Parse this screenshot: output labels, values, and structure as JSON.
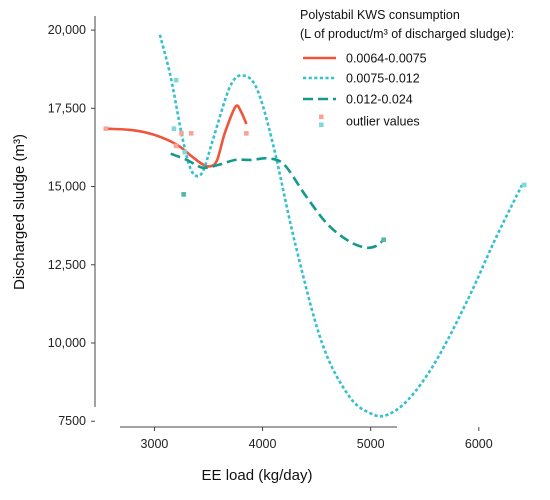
{
  "chart_data": {
    "type": "line",
    "xlabel": "EE load (kg/day)",
    "ylabel": "Discharged sludge (m³)",
    "xlim": [
      2450,
      6520
    ],
    "ylim": [
      6900,
      20450
    ],
    "x_ticks": [
      3000,
      4000,
      5000,
      6000
    ],
    "x_tick_labels": [
      "3000",
      "4000",
      "5000",
      "6000"
    ],
    "y_ticks": [
      7500,
      10000,
      12500,
      15000,
      17500,
      20000
    ],
    "y_tick_labels": [
      "7500",
      "10,000",
      "12,500",
      "15,000",
      "17,500",
      "20,000"
    ],
    "legend": {
      "title_line1": "Polystabil KWS consumption",
      "title_line2": "(L of product/m³ of discharged sludge):",
      "position": "top-right"
    },
    "series": [
      {
        "name": "0.0064-0.0075",
        "color": "#f0553b",
        "style": "solid",
        "x": [
          2550,
          2800,
          3000,
          3200,
          3350,
          3450,
          3520,
          3580,
          3650,
          3750,
          3800,
          3850
        ],
        "y": [
          16850,
          16800,
          16650,
          16350,
          15950,
          15700,
          15650,
          15850,
          16700,
          17550,
          17400,
          17000
        ]
      },
      {
        "name": "0.0075-0.012",
        "color": "#33c0d0",
        "style": "dotted",
        "x": [
          3050,
          3150,
          3250,
          3320,
          3380,
          3450,
          3550,
          3700,
          3820,
          3950,
          4100,
          4300,
          4550,
          4800,
          5000,
          5150,
          5350,
          5600,
          5900,
          6150,
          6400
        ],
        "y": [
          19850,
          18500,
          16700,
          15700,
          15350,
          15500,
          16600,
          18200,
          18550,
          18100,
          16300,
          13200,
          10000,
          8300,
          7750,
          7700,
          8200,
          9400,
          11400,
          13300,
          15050
        ]
      },
      {
        "name": "0.012-0.024",
        "color": "#139a8c",
        "style": "dashed",
        "x": [
          3150,
          3300,
          3450,
          3600,
          3750,
          3900,
          4050,
          4200,
          4400,
          4600,
          4800,
          4950,
          5050,
          5120
        ],
        "y": [
          16050,
          15850,
          15600,
          15700,
          15850,
          15850,
          15900,
          15700,
          14700,
          13800,
          13250,
          13050,
          13100,
          13300
        ]
      }
    ],
    "outliers": {
      "name": "outlier values",
      "points": [
        {
          "x": 2550,
          "y": 16850,
          "color": "#f6a595"
        },
        {
          "x": 3200,
          "y": 16300,
          "color": "#f6a595"
        },
        {
          "x": 3250,
          "y": 16700,
          "color": "#f6a595"
        },
        {
          "x": 3340,
          "y": 16700,
          "color": "#f6a595"
        },
        {
          "x": 3850,
          "y": 16700,
          "color": "#f6a595"
        },
        {
          "x": 3180,
          "y": 16850,
          "color": "#7fd9d9"
        },
        {
          "x": 3200,
          "y": 18400,
          "color": "#7fd9d9"
        },
        {
          "x": 3280,
          "y": 16100,
          "color": "#7fd9d9"
        },
        {
          "x": 3270,
          "y": 14750,
          "color": "#52b8a8"
        },
        {
          "x": 5120,
          "y": 13300,
          "color": "#52b8a8"
        },
        {
          "x": 6420,
          "y": 15050,
          "color": "#7fd9d9"
        }
      ]
    }
  }
}
